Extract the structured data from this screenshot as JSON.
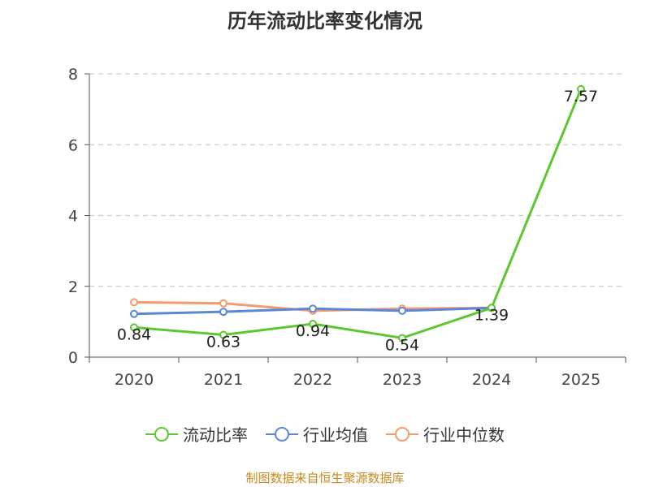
{
  "chart_data": {
    "type": "line",
    "title": "历年流动比率变化情况",
    "categories": [
      "2020",
      "2021",
      "2022",
      "2023",
      "2024",
      "2025"
    ],
    "ylim": [
      0,
      8
    ],
    "yticks": [
      "0",
      "2",
      "4",
      "6",
      "8"
    ],
    "grid": true,
    "legend_position": "bottom",
    "series": [
      {
        "name": "流动比率",
        "color": "#5cc72e",
        "values": [
          0.84,
          0.63,
          0.94,
          0.54,
          1.39,
          7.57
        ],
        "labels": [
          "0.84",
          "0.63",
          "0.94",
          "0.54",
          "1.39",
          "7.57"
        ]
      },
      {
        "name": "行业均值",
        "color": "#5b87d9",
        "values": [
          1.22,
          1.28,
          1.37,
          1.31,
          1.39,
          null
        ]
      },
      {
        "name": "行业中位数",
        "color": "#f59a6c",
        "values": [
          1.55,
          1.52,
          1.31,
          1.37,
          1.39,
          null
        ]
      }
    ]
  },
  "source": "制图数据来自恒生聚源数据库"
}
